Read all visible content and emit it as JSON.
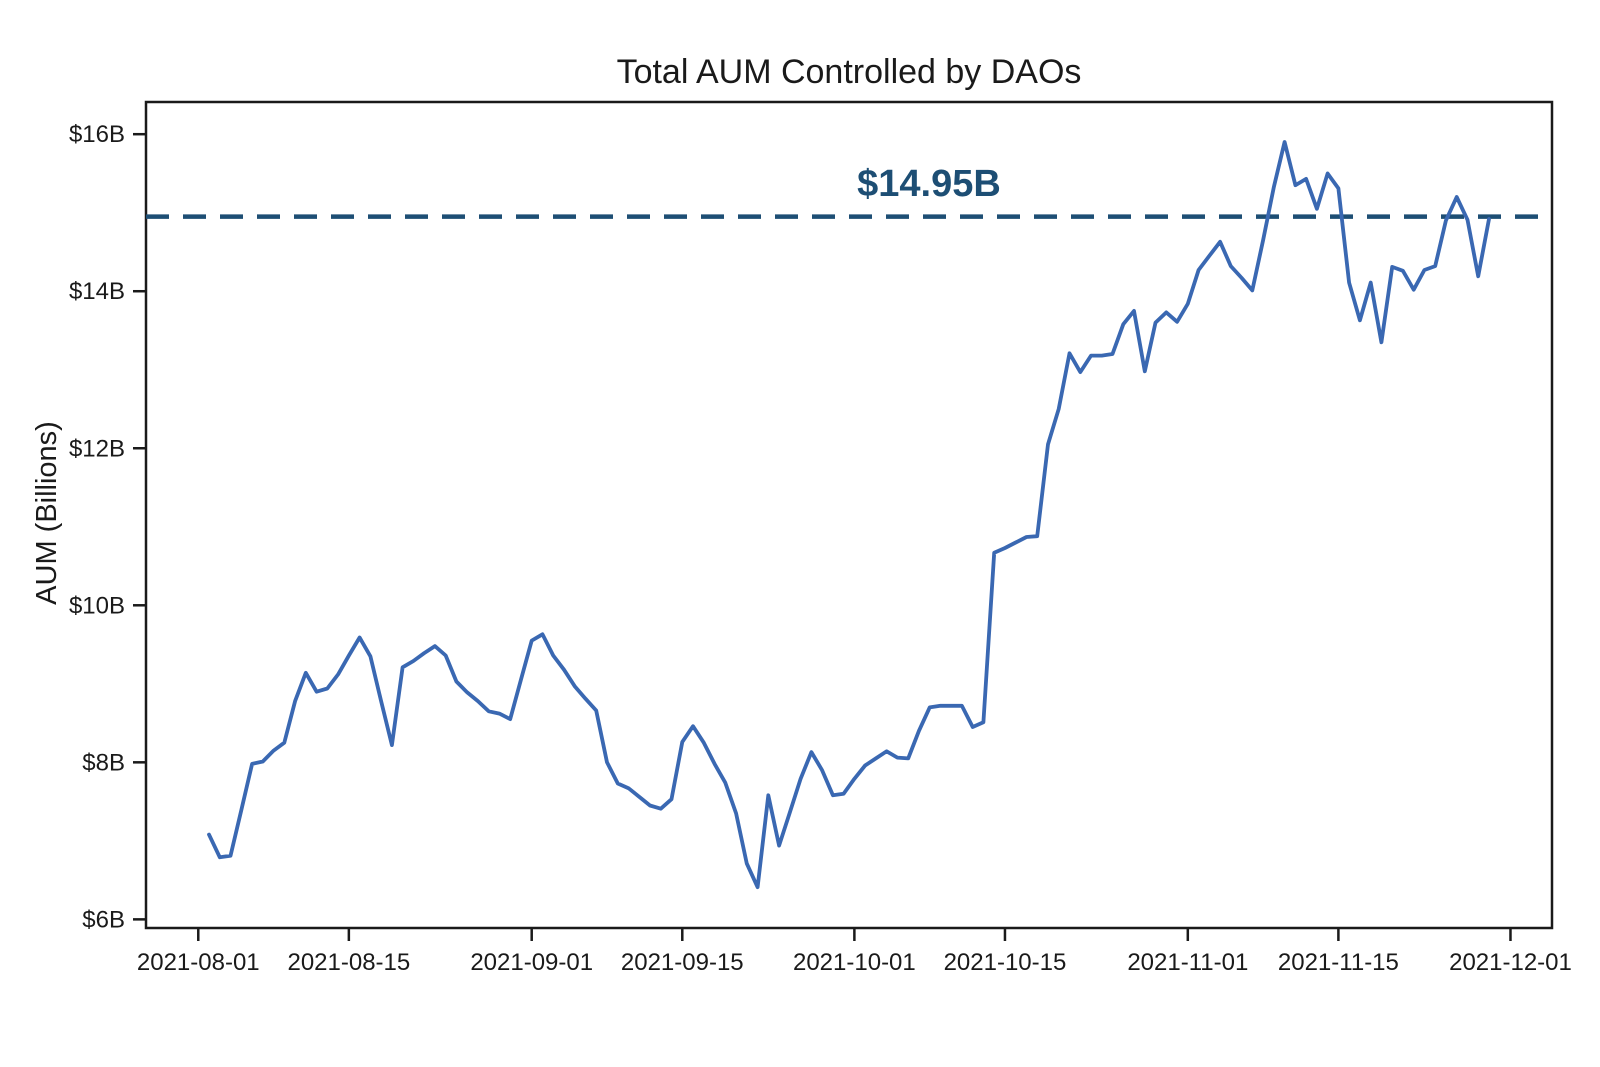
{
  "chart_data": {
    "type": "line",
    "title": "Total AUM Controlled by DAOs",
    "xlabel": "",
    "ylabel": "AUM (Billions)",
    "grid": false,
    "legend_position": "none",
    "ylim": [
      5.89,
      16.41
    ],
    "x_pad_days": 5.86,
    "y_ticks": [
      {
        "label": "$6B",
        "value": 6
      },
      {
        "label": "$8B",
        "value": 8
      },
      {
        "label": "$10B",
        "value": 10
      },
      {
        "label": "$12B",
        "value": 12
      },
      {
        "label": "$14B",
        "value": 14
      },
      {
        "label": "$16B",
        "value": 16
      }
    ],
    "x_ticks": [
      "2021-08-01",
      "2021-08-15",
      "2021-09-01",
      "2021-09-15",
      "2021-10-01",
      "2021-10-15",
      "2021-11-01",
      "2021-11-15",
      "2021-12-01"
    ],
    "reference_line": {
      "value": 14.95,
      "label": "$14.95B",
      "style": "dashed"
    },
    "colors": {
      "line": "#3a68b2",
      "reference": "#1d4e74",
      "axis": "#1a1a1a",
      "text": "#1a1a1a",
      "background": "#ffffff"
    },
    "series_name": "Total AUM Controlled by DAOs",
    "frequency": "daily",
    "points": [
      [
        "2021-08-02",
        7.08
      ],
      [
        "2021-08-03",
        6.79
      ],
      [
        "2021-08-04",
        6.81
      ],
      [
        "2021-08-05",
        7.39
      ],
      [
        "2021-08-06",
        7.98
      ],
      [
        "2021-08-07",
        8.01
      ],
      [
        "2021-08-08",
        8.15
      ],
      [
        "2021-08-09",
        8.25
      ],
      [
        "2021-08-10",
        8.78
      ],
      [
        "2021-08-11",
        9.14
      ],
      [
        "2021-08-12",
        8.9
      ],
      [
        "2021-08-13",
        8.94
      ],
      [
        "2021-08-14",
        9.12
      ],
      [
        "2021-08-15",
        9.36
      ],
      [
        "2021-08-16",
        9.59
      ],
      [
        "2021-08-17",
        9.35
      ],
      [
        "2021-08-18",
        8.78
      ],
      [
        "2021-08-19",
        8.22
      ],
      [
        "2021-08-20",
        9.21
      ],
      [
        "2021-08-21",
        9.29
      ],
      [
        "2021-08-22",
        9.39
      ],
      [
        "2021-08-23",
        9.48
      ],
      [
        "2021-08-24",
        9.36
      ],
      [
        "2021-08-25",
        9.03
      ],
      [
        "2021-08-26",
        8.89
      ],
      [
        "2021-08-27",
        8.78
      ],
      [
        "2021-08-28",
        8.65
      ],
      [
        "2021-08-29",
        8.62
      ],
      [
        "2021-08-30",
        8.55
      ],
      [
        "2021-08-31",
        9.05
      ],
      [
        "2021-09-01",
        9.55
      ],
      [
        "2021-09-02",
        9.63
      ],
      [
        "2021-09-03",
        9.36
      ],
      [
        "2021-09-04",
        9.18
      ],
      [
        "2021-09-05",
        8.97
      ],
      [
        "2021-09-06",
        8.81
      ],
      [
        "2021-09-07",
        8.66
      ],
      [
        "2021-09-08",
        8.0
      ],
      [
        "2021-09-09",
        7.73
      ],
      [
        "2021-09-10",
        7.67
      ],
      [
        "2021-09-11",
        7.56
      ],
      [
        "2021-09-12",
        7.45
      ],
      [
        "2021-09-13",
        7.41
      ],
      [
        "2021-09-14",
        7.53
      ],
      [
        "2021-09-15",
        8.26
      ],
      [
        "2021-09-16",
        8.46
      ],
      [
        "2021-09-17",
        8.25
      ],
      [
        "2021-09-18",
        7.98
      ],
      [
        "2021-09-19",
        7.74
      ],
      [
        "2021-09-20",
        7.35
      ],
      [
        "2021-09-21",
        6.71
      ],
      [
        "2021-09-22",
        6.41
      ],
      [
        "2021-09-23",
        7.58
      ],
      [
        "2021-09-24",
        6.94
      ],
      [
        "2021-09-25",
        7.36
      ],
      [
        "2021-09-26",
        7.79
      ],
      [
        "2021-09-27",
        8.13
      ],
      [
        "2021-09-28",
        7.9
      ],
      [
        "2021-09-29",
        7.58
      ],
      [
        "2021-09-30",
        7.6
      ],
      [
        "2021-10-01",
        7.79
      ],
      [
        "2021-10-02",
        7.96
      ],
      [
        "2021-10-03",
        8.05
      ],
      [
        "2021-10-04",
        8.14
      ],
      [
        "2021-10-05",
        8.06
      ],
      [
        "2021-10-06",
        8.05
      ],
      [
        "2021-10-07",
        8.4
      ],
      [
        "2021-10-08",
        8.7
      ],
      [
        "2021-10-09",
        8.72
      ],
      [
        "2021-10-10",
        8.72
      ],
      [
        "2021-10-11",
        8.72
      ],
      [
        "2021-10-12",
        8.45
      ],
      [
        "2021-10-13",
        8.51
      ],
      [
        "2021-10-14",
        10.67
      ],
      [
        "2021-10-15",
        10.73
      ],
      [
        "2021-10-16",
        10.8
      ],
      [
        "2021-10-17",
        10.87
      ],
      [
        "2021-10-18",
        10.88
      ],
      [
        "2021-10-19",
        12.05
      ],
      [
        "2021-10-20",
        12.5
      ],
      [
        "2021-10-21",
        13.21
      ],
      [
        "2021-10-22",
        12.97
      ],
      [
        "2021-10-23",
        13.18
      ],
      [
        "2021-10-24",
        13.18
      ],
      [
        "2021-10-25",
        13.2
      ],
      [
        "2021-10-26",
        13.58
      ],
      [
        "2021-10-27",
        13.75
      ],
      [
        "2021-10-28",
        12.98
      ],
      [
        "2021-10-29",
        13.6
      ],
      [
        "2021-10-30",
        13.73
      ],
      [
        "2021-10-31",
        13.61
      ],
      [
        "2021-11-01",
        13.84
      ],
      [
        "2021-11-02",
        14.27
      ],
      [
        "2021-11-03",
        14.45
      ],
      [
        "2021-11-04",
        14.63
      ],
      [
        "2021-11-05",
        14.32
      ],
      [
        "2021-11-06",
        14.17
      ],
      [
        "2021-11-07",
        14.01
      ],
      [
        "2021-11-08",
        14.65
      ],
      [
        "2021-11-09",
        15.33
      ],
      [
        "2021-11-10",
        15.9
      ],
      [
        "2021-11-11",
        15.35
      ],
      [
        "2021-11-12",
        15.43
      ],
      [
        "2021-11-13",
        15.05
      ],
      [
        "2021-11-14",
        15.5
      ],
      [
        "2021-11-15",
        15.31
      ],
      [
        "2021-11-16",
        14.11
      ],
      [
        "2021-11-17",
        13.63
      ],
      [
        "2021-11-18",
        14.11
      ],
      [
        "2021-11-19",
        13.35
      ],
      [
        "2021-11-20",
        14.31
      ],
      [
        "2021-11-21",
        14.26
      ],
      [
        "2021-11-22",
        14.02
      ],
      [
        "2021-11-23",
        14.27
      ],
      [
        "2021-11-24",
        14.32
      ],
      [
        "2021-11-25",
        14.9
      ],
      [
        "2021-11-26",
        15.2
      ],
      [
        "2021-11-27",
        14.91
      ],
      [
        "2021-11-28",
        14.19
      ],
      [
        "2021-11-29",
        14.92
      ]
    ]
  }
}
